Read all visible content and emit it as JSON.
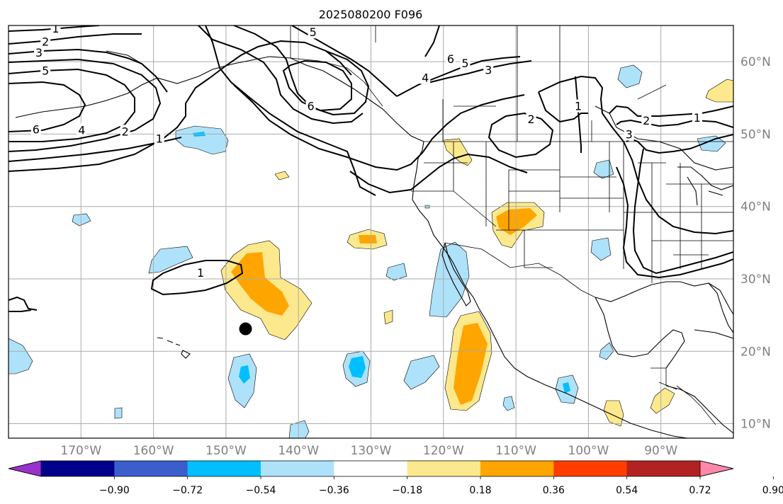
{
  "title": "2025080200 F096",
  "map": {
    "lon_range": [
      -180,
      -80
    ],
    "lat_range": [
      8,
      65
    ],
    "lon_ticks": [
      {
        "lon": -170,
        "label": "170°W"
      },
      {
        "lon": -160,
        "label": "160°W"
      },
      {
        "lon": -150,
        "label": "150°W"
      },
      {
        "lon": -140,
        "label": "140°W"
      },
      {
        "lon": -130,
        "label": "130°W"
      },
      {
        "lon": -120,
        "label": "120°W"
      },
      {
        "lon": -110,
        "label": "110°W"
      },
      {
        "lon": -100,
        "label": "100°W"
      },
      {
        "lon": -90,
        "label": "90°W"
      }
    ],
    "lat_ticks": [
      {
        "lat": 10,
        "label": "10°N"
      },
      {
        "lat": 20,
        "label": "20°N"
      },
      {
        "lat": 30,
        "label": "30°N"
      },
      {
        "lat": 40,
        "label": "40°N"
      },
      {
        "lat": 50,
        "label": "50°N"
      },
      {
        "lat": 60,
        "label": "60°N"
      }
    ],
    "gridlines": true,
    "marker": {
      "lon": -147.3,
      "lat": 23.1,
      "color": "#000000"
    }
  },
  "colorbar": {
    "extend": "both",
    "tick_labels": [
      "−0.90",
      "−0.72",
      "−0.54",
      "−0.36",
      "−0.18",
      "0.18",
      "0.36",
      "0.54",
      "0.72",
      "0.90"
    ],
    "colors": [
      "#9932cc",
      "#00008b",
      "#3a5fcd",
      "#00bfff",
      "#aee2fb",
      "#ffffff",
      "#fde98d",
      "#ffa500",
      "#ff3d00",
      "#b22222",
      "#ff88aa"
    ]
  },
  "contour_labels": [
    {
      "text": "1",
      "lon": -173.5,
      "lat": 64.5
    },
    {
      "text": "2",
      "lon": -174.9,
      "lat": 62.7
    },
    {
      "text": "3",
      "lon": -175.8,
      "lat": 61.2
    },
    {
      "text": "5",
      "lon": -174.9,
      "lat": 58.7
    },
    {
      "text": "6",
      "lon": -176.2,
      "lat": 50.6
    },
    {
      "text": "4",
      "lon": -169.9,
      "lat": 50.5
    },
    {
      "text": "2",
      "lon": -163.9,
      "lat": 50.3
    },
    {
      "text": "1",
      "lon": -159.2,
      "lat": 49.3
    },
    {
      "text": "5",
      "lon": -138.0,
      "lat": 64.0
    },
    {
      "text": "6",
      "lon": -138.3,
      "lat": 53.8
    },
    {
      "text": "4",
      "lon": -122.5,
      "lat": 57.7
    },
    {
      "text": "6",
      "lon": -119.0,
      "lat": 60.3
    },
    {
      "text": "5",
      "lon": -117.0,
      "lat": 59.7
    },
    {
      "text": "3",
      "lon": -113.8,
      "lat": 58.8
    },
    {
      "text": "2",
      "lon": -107.9,
      "lat": 52.0
    },
    {
      "text": "1",
      "lon": -101.4,
      "lat": 53.8
    },
    {
      "text": "2",
      "lon": -92.0,
      "lat": 51.8
    },
    {
      "text": "1",
      "lon": -85.0,
      "lat": 52.2
    },
    {
      "text": "3",
      "lon": -94.4,
      "lat": 49.9
    },
    {
      "text": "1",
      "lon": -153.5,
      "lat": 30.8
    }
  ]
}
